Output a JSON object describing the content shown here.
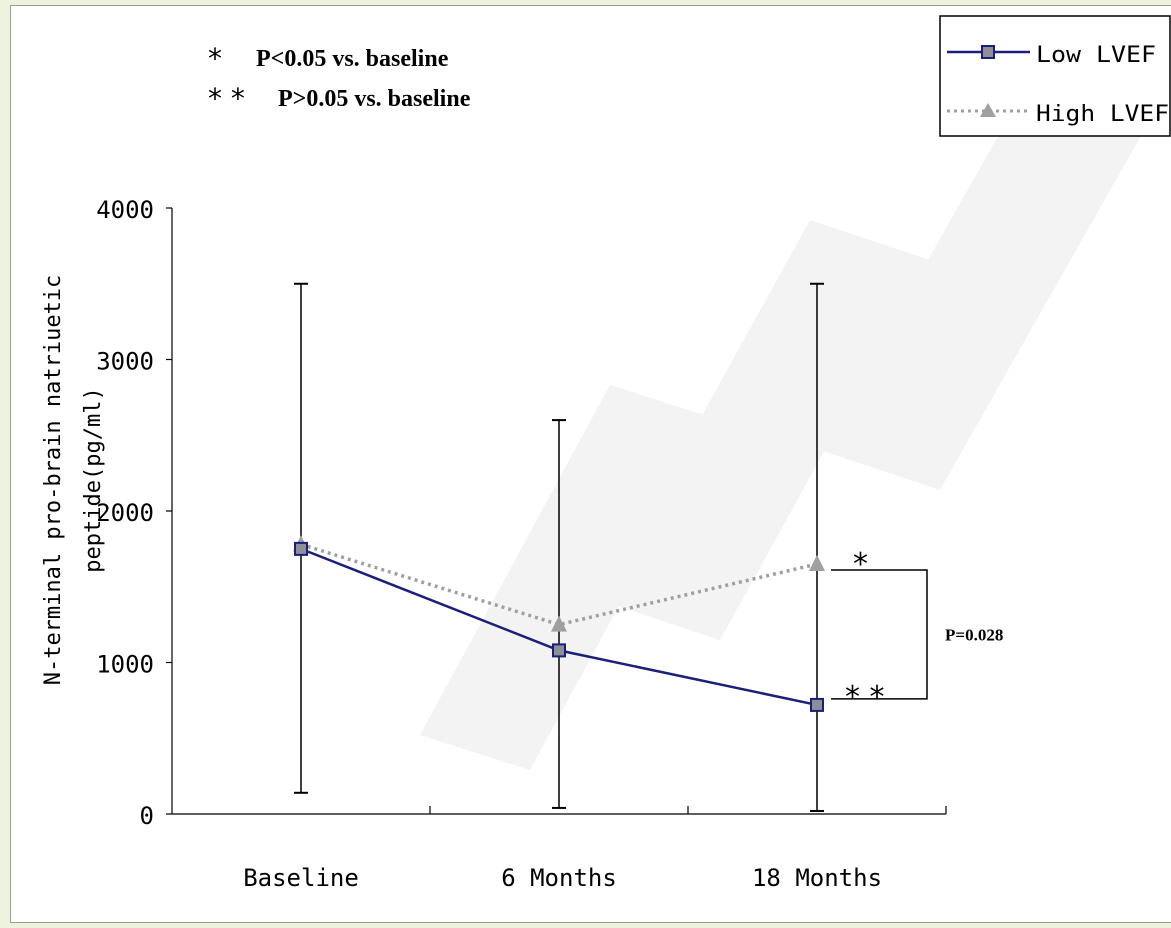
{
  "chart_data": {
    "type": "line",
    "title": "",
    "categories": [
      "Baseline",
      "6 Months",
      "18 Months"
    ],
    "ylabel_lines": [
      "N-terminal pro-brain natriuetic",
      "peptide(pg/ml)"
    ],
    "xlabel": "",
    "ylim": [
      0,
      4000
    ],
    "yticks": [
      0,
      1000,
      2000,
      3000,
      4000
    ],
    "grid": false,
    "legend_position": "top-right",
    "series": [
      {
        "name": "Low LVEF",
        "values": [
          1750,
          1080,
          720
        ],
        "error_high": [
          3500,
          2600,
          3500
        ],
        "error_low": [
          140,
          40,
          20
        ],
        "color": "#1b1f7a",
        "line_style": "solid",
        "marker": "square"
      },
      {
        "name": "High LVEF",
        "values": [
          1780,
          1250,
          1650
        ],
        "color": "#a0a0a0",
        "line_style": "dotted",
        "marker": "triangle"
      }
    ],
    "annotations": {
      "note1_star": "*",
      "note1_text": "P<0.05 vs. baseline",
      "note2_star": "* *",
      "note2_text": "P>0.05 vs. baseline",
      "high_mark": "*",
      "low_mark": "* *",
      "pvalue": "P=0.028"
    }
  },
  "colors": {
    "page_border": "#eef3dd",
    "axis": "#000000",
    "watermark": "#f3f3f3"
  }
}
